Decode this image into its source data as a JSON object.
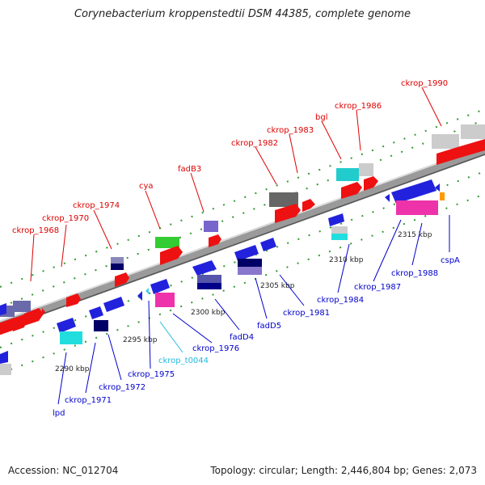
{
  "title": "Corynebacterium kroppenstedtii DSM 44385, complete genome",
  "footer": {
    "accession": "Accession: NC_012704",
    "summary": "Topology: circular; Length: 2,446,804 bp; Genes: 2,073"
  },
  "scale_labels": [
    "2290 kbp",
    "2295 kbp",
    "2300 kbp",
    "2305 kbp",
    "2310 kbp",
    "2315 kbp"
  ],
  "genes": [
    {
      "name": "ckrop_1968",
      "color": "#dd0000",
      "strand": "plus"
    },
    {
      "name": "ckrop_1970",
      "color": "#dd0000",
      "strand": "plus"
    },
    {
      "name": "ckrop_1974",
      "color": "#dd0000",
      "strand": "plus"
    },
    {
      "name": "cya",
      "color": "#dd0000",
      "strand": "plus"
    },
    {
      "name": "fadB3",
      "color": "#dd0000",
      "strand": "plus"
    },
    {
      "name": "ckrop_1982",
      "color": "#dd0000",
      "strand": "plus"
    },
    {
      "name": "ckrop_1983",
      "color": "#dd0000",
      "strand": "plus"
    },
    {
      "name": "bgl",
      "color": "#dd0000",
      "strand": "plus"
    },
    {
      "name": "ckrop_1986",
      "color": "#dd0000",
      "strand": "plus"
    },
    {
      "name": "ckrop_1990",
      "color": "#dd0000",
      "strand": "plus"
    },
    {
      "name": "lpd",
      "color": "#0000cc",
      "strand": "minus"
    },
    {
      "name": "ckrop_1971",
      "color": "#0000cc",
      "strand": "minus"
    },
    {
      "name": "ckrop_1972",
      "color": "#0000cc",
      "strand": "minus"
    },
    {
      "name": "ckrop_1975",
      "color": "#0000cc",
      "strand": "minus"
    },
    {
      "name": "ckrop_t0044",
      "color": "#22bbdd",
      "strand": "minus"
    },
    {
      "name": "ckrop_1976",
      "color": "#0000cc",
      "strand": "minus"
    },
    {
      "name": "fadD4",
      "color": "#0000cc",
      "strand": "minus"
    },
    {
      "name": "fadD5",
      "color": "#0000cc",
      "strand": "minus"
    },
    {
      "name": "ckrop_1981",
      "color": "#0000cc",
      "strand": "minus"
    },
    {
      "name": "ckrop_1984",
      "color": "#0000cc",
      "strand": "minus"
    },
    {
      "name": "ckrop_1987",
      "color": "#0000cc",
      "strand": "minus"
    },
    {
      "name": "ckrop_1988",
      "color": "#0000cc",
      "strand": "minus"
    },
    {
      "name": "cspA",
      "color": "#0000cc",
      "strand": "minus"
    }
  ]
}
